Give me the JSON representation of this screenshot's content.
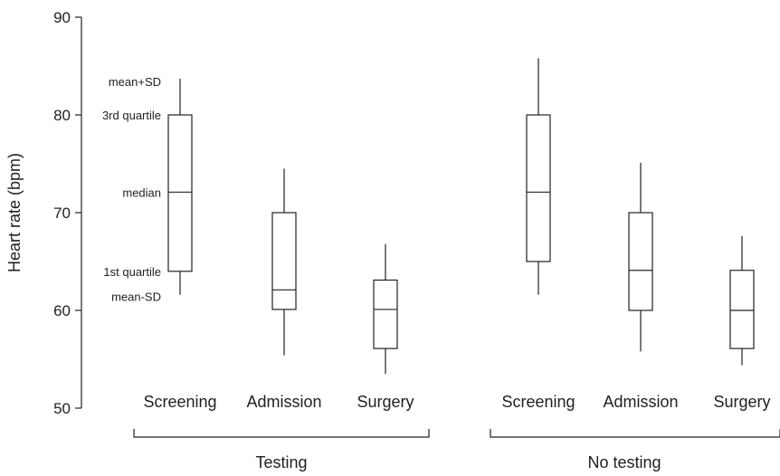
{
  "chart_data": {
    "type": "box",
    "ylabel": "Heart rate (bpm)",
    "ylim": [
      50,
      90
    ],
    "yticks": [
      50,
      60,
      70,
      80,
      90
    ],
    "grid": false,
    "groups": [
      {
        "label": "Testing",
        "boxes": [
          {
            "category": "Screening",
            "mean_minus_sd": 61.6,
            "q1": 64.0,
            "median": 72.1,
            "q3": 80.0,
            "mean_plus_sd": 83.7
          },
          {
            "category": "Admission",
            "mean_minus_sd": 55.4,
            "q1": 60.1,
            "median": 62.1,
            "q3": 70.0,
            "mean_plus_sd": 74.5
          },
          {
            "category": "Surgery",
            "mean_minus_sd": 53.5,
            "q1": 56.1,
            "median": 60.1,
            "q3": 63.1,
            "mean_plus_sd": 66.8
          }
        ]
      },
      {
        "label": "No testing",
        "boxes": [
          {
            "category": "Screening",
            "mean_minus_sd": 61.6,
            "q1": 65.0,
            "median": 72.1,
            "q3": 80.0,
            "mean_plus_sd": 85.8
          },
          {
            "category": "Admission",
            "mean_minus_sd": 55.8,
            "q1": 60.0,
            "median": 64.1,
            "q3": 70.0,
            "mean_plus_sd": 75.1
          },
          {
            "category": "Surgery",
            "mean_minus_sd": 54.4,
            "q1": 56.1,
            "median": 60.0,
            "q3": 64.1,
            "mean_plus_sd": 67.6
          }
        ]
      }
    ],
    "legend_annotations": {
      "mean_plus_sd": "mean+SD",
      "q3": "3rd quartile",
      "median": "median",
      "q1": "1st quartile",
      "mean_minus_sd": "mean-SD"
    },
    "colors": {
      "stroke": "#222222",
      "box_fill": "#ffffff"
    }
  }
}
